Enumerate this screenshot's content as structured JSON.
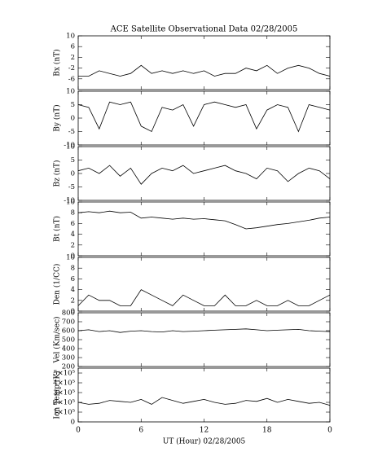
{
  "chart_data": [
    {
      "type": "line",
      "title": "ACE Satellite Observational Data  02/28/2005",
      "ylabel": "Bx (nT)",
      "x": [
        0,
        1,
        2,
        3,
        4,
        5,
        6,
        7,
        8,
        9,
        10,
        11,
        12,
        13,
        14,
        15,
        16,
        17,
        18,
        19,
        20,
        21,
        22,
        23,
        24
      ],
      "values": [
        -5,
        -5,
        -3,
        -4,
        -5,
        -4,
        -1,
        -4,
        -3,
        -4,
        -3,
        -4,
        -3,
        -5,
        -4,
        -4,
        -2,
        -3,
        -1,
        -4,
        -2,
        -1,
        -2,
        -4,
        -5
      ],
      "color": "#000000",
      "xlim": [
        0,
        24
      ],
      "ylim": [
        -10,
        10
      ],
      "yticks": [
        -6,
        -2,
        2,
        6,
        10
      ]
    },
    {
      "type": "line",
      "ylabel": "By (nT)",
      "x": [
        0,
        1,
        2,
        3,
        4,
        5,
        6,
        7,
        8,
        9,
        10,
        11,
        12,
        13,
        14,
        15,
        16,
        17,
        18,
        19,
        20,
        21,
        22,
        23,
        24
      ],
      "values": [
        5,
        4,
        -4,
        6,
        5,
        6,
        -3,
        -5,
        4,
        3,
        5,
        -3,
        5,
        6,
        5,
        4,
        5,
        -4,
        3,
        5,
        4,
        -5,
        5,
        4,
        3
      ],
      "color": "#000000",
      "xlim": [
        0,
        24
      ],
      "ylim": [
        -10,
        10
      ],
      "yticks": [
        -10,
        -5,
        0,
        5,
        10
      ]
    },
    {
      "type": "line",
      "ylabel": "Bz (nT)",
      "x": [
        0,
        1,
        2,
        3,
        4,
        5,
        6,
        7,
        8,
        9,
        10,
        11,
        12,
        13,
        14,
        15,
        16,
        17,
        18,
        19,
        20,
        21,
        22,
        23,
        24
      ],
      "values": [
        1,
        2,
        0,
        3,
        -1,
        2,
        -4,
        0,
        2,
        1,
        3,
        0,
        1,
        2,
        3,
        1,
        0,
        -2,
        2,
        1,
        -3,
        0,
        2,
        1,
        -2
      ],
      "color": "#000000",
      "xlim": [
        0,
        24
      ],
      "ylim": [
        -10,
        10
      ],
      "yticks": [
        -10,
        -5,
        0,
        5,
        10
      ]
    },
    {
      "type": "line",
      "ylabel": "Bt (nT)",
      "x": [
        0,
        1,
        2,
        3,
        4,
        5,
        6,
        7,
        8,
        9,
        10,
        11,
        12,
        13,
        14,
        15,
        16,
        17,
        18,
        19,
        20,
        21,
        22,
        23,
        24
      ],
      "values": [
        8,
        8.2,
        8,
        8.3,
        8,
        8.1,
        7,
        7.2,
        7,
        6.8,
        7,
        6.8,
        6.9,
        6.7,
        6.5,
        5.8,
        5,
        5.2,
        5.5,
        5.8,
        6,
        6.3,
        6.6,
        7,
        7.2
      ],
      "color": "#000000",
      "xlim": [
        0,
        24
      ],
      "ylim": [
        0,
        10
      ],
      "yticks": [
        0,
        2,
        4,
        6,
        8,
        10
      ]
    },
    {
      "type": "line",
      "ylabel": "Den (1/CC)",
      "x": [
        0,
        1,
        2,
        3,
        4,
        5,
        6,
        7,
        8,
        9,
        10,
        11,
        12,
        13,
        14,
        15,
        16,
        17,
        18,
        19,
        20,
        21,
        22,
        23,
        24
      ],
      "values": [
        1,
        3,
        2,
        2,
        1,
        1,
        4,
        3,
        2,
        1,
        3,
        2,
        1,
        1,
        3,
        1,
        1,
        2,
        1,
        1,
        2,
        1,
        1,
        2,
        3
      ],
      "color": "#000000",
      "xlim": [
        0,
        24
      ],
      "ylim": [
        0,
        10
      ],
      "yticks": [
        0,
        2,
        4,
        6,
        8,
        10
      ]
    },
    {
      "type": "line",
      "ylabel": "Vel (Km/sec)",
      "x": [
        0,
        1,
        2,
        3,
        4,
        5,
        6,
        7,
        8,
        9,
        10,
        11,
        12,
        13,
        14,
        15,
        16,
        17,
        18,
        19,
        20,
        21,
        22,
        23,
        24
      ],
      "values": [
        600,
        610,
        590,
        600,
        580,
        595,
        600,
        590,
        585,
        600,
        590,
        595,
        600,
        605,
        610,
        615,
        620,
        610,
        600,
        605,
        610,
        615,
        600,
        595,
        590
      ],
      "color": "#000000",
      "xlim": [
        0,
        24
      ],
      "ylim": [
        200,
        800
      ],
      "yticks": [
        200,
        300,
        400,
        500,
        600,
        700,
        800
      ]
    },
    {
      "type": "line",
      "ylabel": "Ion Temp (K)",
      "xlabel": "UT (Hour)  02/28/2005",
      "x": [
        0,
        1,
        2,
        3,
        4,
        5,
        6,
        7,
        8,
        9,
        10,
        11,
        12,
        13,
        14,
        15,
        16,
        17,
        18,
        19,
        20,
        21,
        22,
        23,
        24
      ],
      "values": [
        200000,
        180000,
        190000,
        220000,
        210000,
        200000,
        230000,
        180000,
        250000,
        220000,
        190000,
        210000,
        230000,
        200000,
        180000,
        190000,
        220000,
        210000,
        240000,
        200000,
        230000,
        210000,
        190000,
        200000,
        170000
      ],
      "color": "#000000",
      "xlim": [
        0,
        24
      ],
      "ylim": [
        0,
        550000
      ],
      "yticks": [
        0,
        {
          "value": 100000,
          "label": "1×10⁵"
        },
        {
          "value": 200000,
          "label": "2×10⁵"
        },
        {
          "value": 300000,
          "label": "3×10⁵"
        },
        {
          "value": 400000,
          "label": "4×10⁵"
        },
        {
          "value": 500000,
          "label": "5×10⁵"
        }
      ],
      "xticks": [
        0,
        6,
        12,
        18,
        {
          "value": 24,
          "label": "0"
        }
      ]
    }
  ]
}
